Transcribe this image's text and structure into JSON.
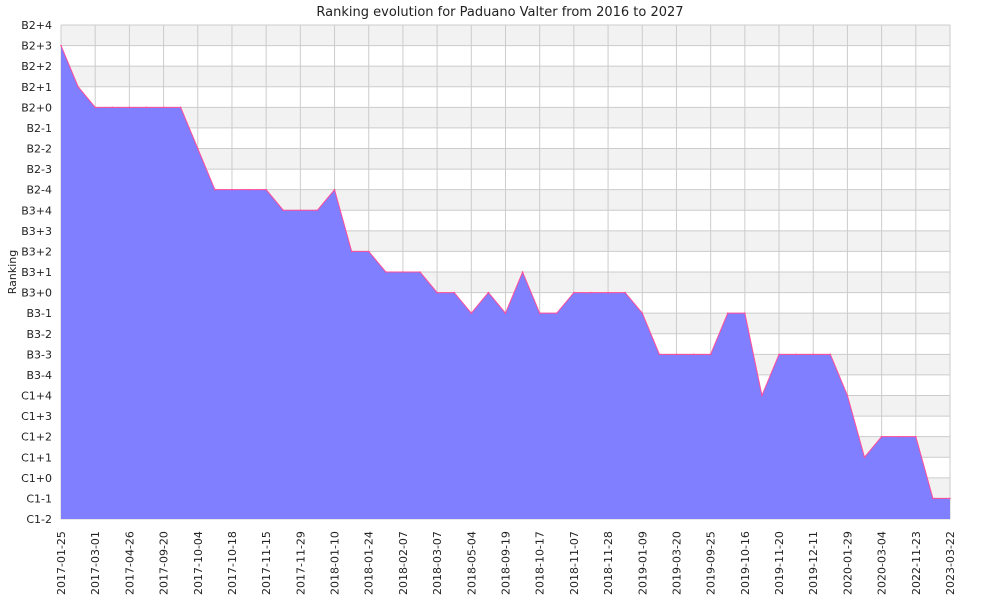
{
  "chart_data": {
    "type": "area",
    "title": "Ranking evolution for Paduano Valter from 2016 to 2027",
    "xlabel": "",
    "ylabel": "Ranking",
    "y_categories": [
      "C1-2",
      "C1-1",
      "C1+0",
      "C1+1",
      "C1+2",
      "C1+3",
      "C1+4",
      "B3-4",
      "B3-3",
      "B3-2",
      "B3-1",
      "B3+0",
      "B3+1",
      "B3+2",
      "B3+3",
      "B3+4",
      "B2-4",
      "B2-3",
      "B2-2",
      "B2-1",
      "B2+0",
      "B2+1",
      "B2+2",
      "B2+3",
      "B2+4"
    ],
    "x_tick_labels": [
      "2017-01-25",
      "2017-03-01",
      "2017-04-26",
      "2017-09-20",
      "2017-10-04",
      "2017-10-18",
      "2017-11-15",
      "2017-11-29",
      "2018-01-10",
      "2018-01-24",
      "2018-02-07",
      "2018-03-07",
      "2018-05-04",
      "2018-09-19",
      "2018-10-17",
      "2018-11-07",
      "2018-11-28",
      "2019-01-09",
      "2019-03-20",
      "2019-09-25",
      "2019-10-16",
      "2019-11-20",
      "2019-12-11",
      "2020-01-29",
      "2020-03-04",
      "2022-11-23",
      "2023-03-22"
    ],
    "series": [
      {
        "name": "",
        "values": [
          "B2+3",
          "B2+1",
          "B2+0",
          "B2+0",
          "B2+0",
          "B2+0",
          "B2+0",
          "B2+0",
          "B2-2",
          "B2-4",
          "B2-4",
          "B2-4",
          "B2-4",
          "B3+4",
          "B3+4",
          "B3+4",
          "B2-4",
          "B3+2",
          "B3+2",
          "B3+1",
          "B3+1",
          "B3+1",
          "B3+0",
          "B3+0",
          "B3-1",
          "B3+0",
          "B3-1",
          "B3+1",
          "B3-1",
          "B3-1",
          "B3+0",
          "B3+0",
          "B3+0",
          "B3+0",
          "B3-1",
          "B3-3",
          "B3-3",
          "B3-3",
          "B3-3",
          "B3-1",
          "B3-1",
          "C1+4",
          "B3-3",
          "B3-3",
          "B3-3",
          "B3-3",
          "C1+4",
          "C1+1",
          "C1+2",
          "C1+2",
          "C1+2",
          "C1-1",
          "C1-1"
        ]
      }
    ],
    "colors": {
      "fill": "#7f7fff",
      "line": "#ff4d9a",
      "grid": "#cccccc",
      "band": "#f2f2f2"
    },
    "grid": true,
    "legend": "none"
  }
}
